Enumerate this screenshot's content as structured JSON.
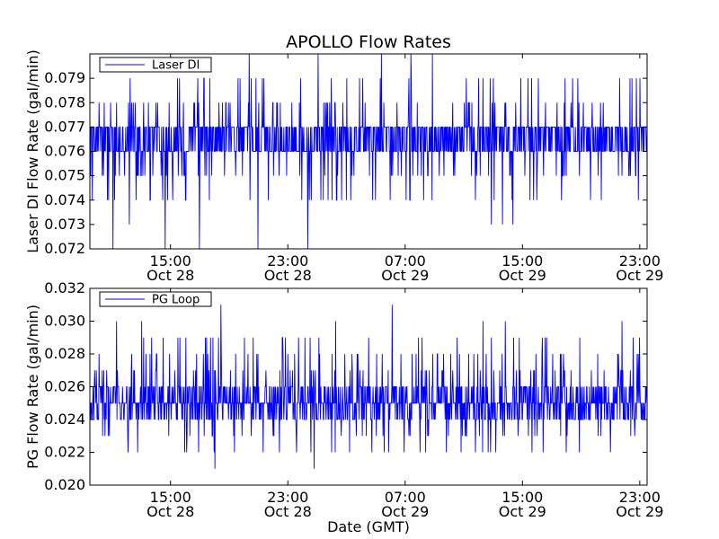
{
  "figure": {
    "title": "APOLLO Flow Rates",
    "xlabel": "Date (GMT)",
    "line_color": "#0000ff"
  },
  "chart_data": [
    {
      "type": "line",
      "ylabel": "Laser DI Flow Rate (gal/min)",
      "legend": {
        "label": "Laser DI",
        "placement": "top-left"
      },
      "xlim": [
        "2013-10-28T09:30",
        "2013-10-29T23:30"
      ],
      "ylim": [
        0.072,
        0.08
      ],
      "yticks": [
        "0.072",
        "0.073",
        "0.074",
        "0.075",
        "0.076",
        "0.077",
        "0.078",
        "0.079"
      ],
      "xticks": [
        {
          "time": "15:00",
          "date": "Oct 28"
        },
        {
          "time": "23:00",
          "date": "Oct 28"
        },
        {
          "time": "07:00",
          "date": "Oct 29"
        },
        {
          "time": "15:00",
          "date": "Oct 29"
        },
        {
          "time": "23:00",
          "date": "Oct 29"
        }
      ],
      "value_summary": {
        "typical_band": [
          0.076,
          0.077
        ],
        "common_range": [
          0.074,
          0.079
        ],
        "min": 0.072,
        "max": 0.08,
        "resolution": 0.001
      }
    },
    {
      "type": "line",
      "ylabel": "PG Flow Rate (gal/min)",
      "legend": {
        "label": "PG Loop",
        "placement": "top-left"
      },
      "xlim": [
        "2013-10-28T09:30",
        "2013-10-29T23:30"
      ],
      "ylim": [
        0.02,
        0.032
      ],
      "yticks": [
        "0.020",
        "0.022",
        "0.024",
        "0.026",
        "0.028",
        "0.030",
        "0.032"
      ],
      "xticks": [
        {
          "time": "15:00",
          "date": "Oct 28"
        },
        {
          "time": "23:00",
          "date": "Oct 28"
        },
        {
          "time": "07:00",
          "date": "Oct 29"
        },
        {
          "time": "15:00",
          "date": "Oct 29"
        },
        {
          "time": "23:00",
          "date": "Oct 29"
        }
      ],
      "value_summary": {
        "typical_band": [
          0.024,
          0.026
        ],
        "common_range": [
          0.022,
          0.029
        ],
        "min": 0.02,
        "max": 0.031,
        "resolution": 0.001
      }
    }
  ]
}
